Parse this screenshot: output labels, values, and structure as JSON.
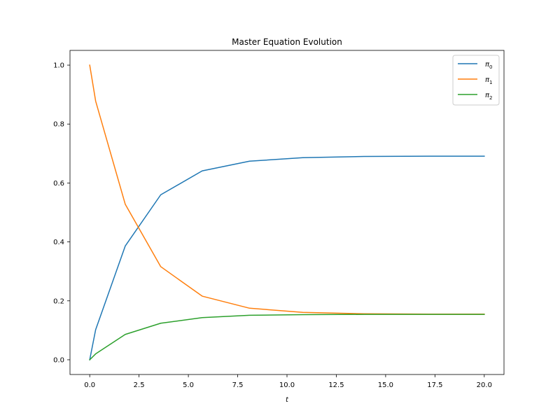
{
  "chart_data": {
    "type": "line",
    "title": "Master Equation Evolution",
    "xlabel": "t",
    "ylabel": "",
    "xlim": [
      -1.0,
      21.0
    ],
    "ylim": [
      -0.05,
      1.05
    ],
    "xticks": [
      0.0,
      2.5,
      5.0,
      7.5,
      10.0,
      12.5,
      15.0,
      17.5,
      20.0
    ],
    "xtick_labels": [
      "0.0",
      "2.5",
      "5.0",
      "7.5",
      "10.0",
      "12.5",
      "15.0",
      "17.5",
      "20.0"
    ],
    "yticks": [
      0.0,
      0.2,
      0.4,
      0.6,
      0.8,
      1.0
    ],
    "ytick_labels": [
      "0.0",
      "0.2",
      "0.4",
      "0.6",
      "0.8",
      "1.0"
    ],
    "grid": false,
    "legend_position": "top-right",
    "series": [
      {
        "name": "π₀",
        "legend_base": "π",
        "legend_sub": "0",
        "color": "#1f77b4",
        "x": [
          0.0,
          0.3,
          1.8,
          3.6,
          5.7,
          8.1,
          10.8,
          13.9,
          17.2,
          20.0
        ],
        "y": [
          0.0,
          0.102,
          0.386,
          0.56,
          0.641,
          0.674,
          0.686,
          0.69,
          0.691,
          0.691
        ]
      },
      {
        "name": "π₁",
        "legend_base": "π",
        "legend_sub": "1",
        "color": "#ff7f0e",
        "x": [
          0.0,
          0.3,
          1.8,
          3.6,
          5.7,
          8.1,
          10.8,
          13.9,
          17.2,
          20.0
        ],
        "y": [
          1.0,
          0.878,
          0.528,
          0.316,
          0.216,
          0.175,
          0.161,
          0.156,
          0.155,
          0.155
        ]
      },
      {
        "name": "π₂",
        "legend_base": "π",
        "legend_sub": "2",
        "color": "#2ca02c",
        "x": [
          0.0,
          0.3,
          1.8,
          3.6,
          5.7,
          8.1,
          10.8,
          13.9,
          17.2,
          20.0
        ],
        "y": [
          0.0,
          0.02,
          0.086,
          0.124,
          0.143,
          0.151,
          0.153,
          0.154,
          0.154,
          0.154
        ]
      }
    ]
  }
}
